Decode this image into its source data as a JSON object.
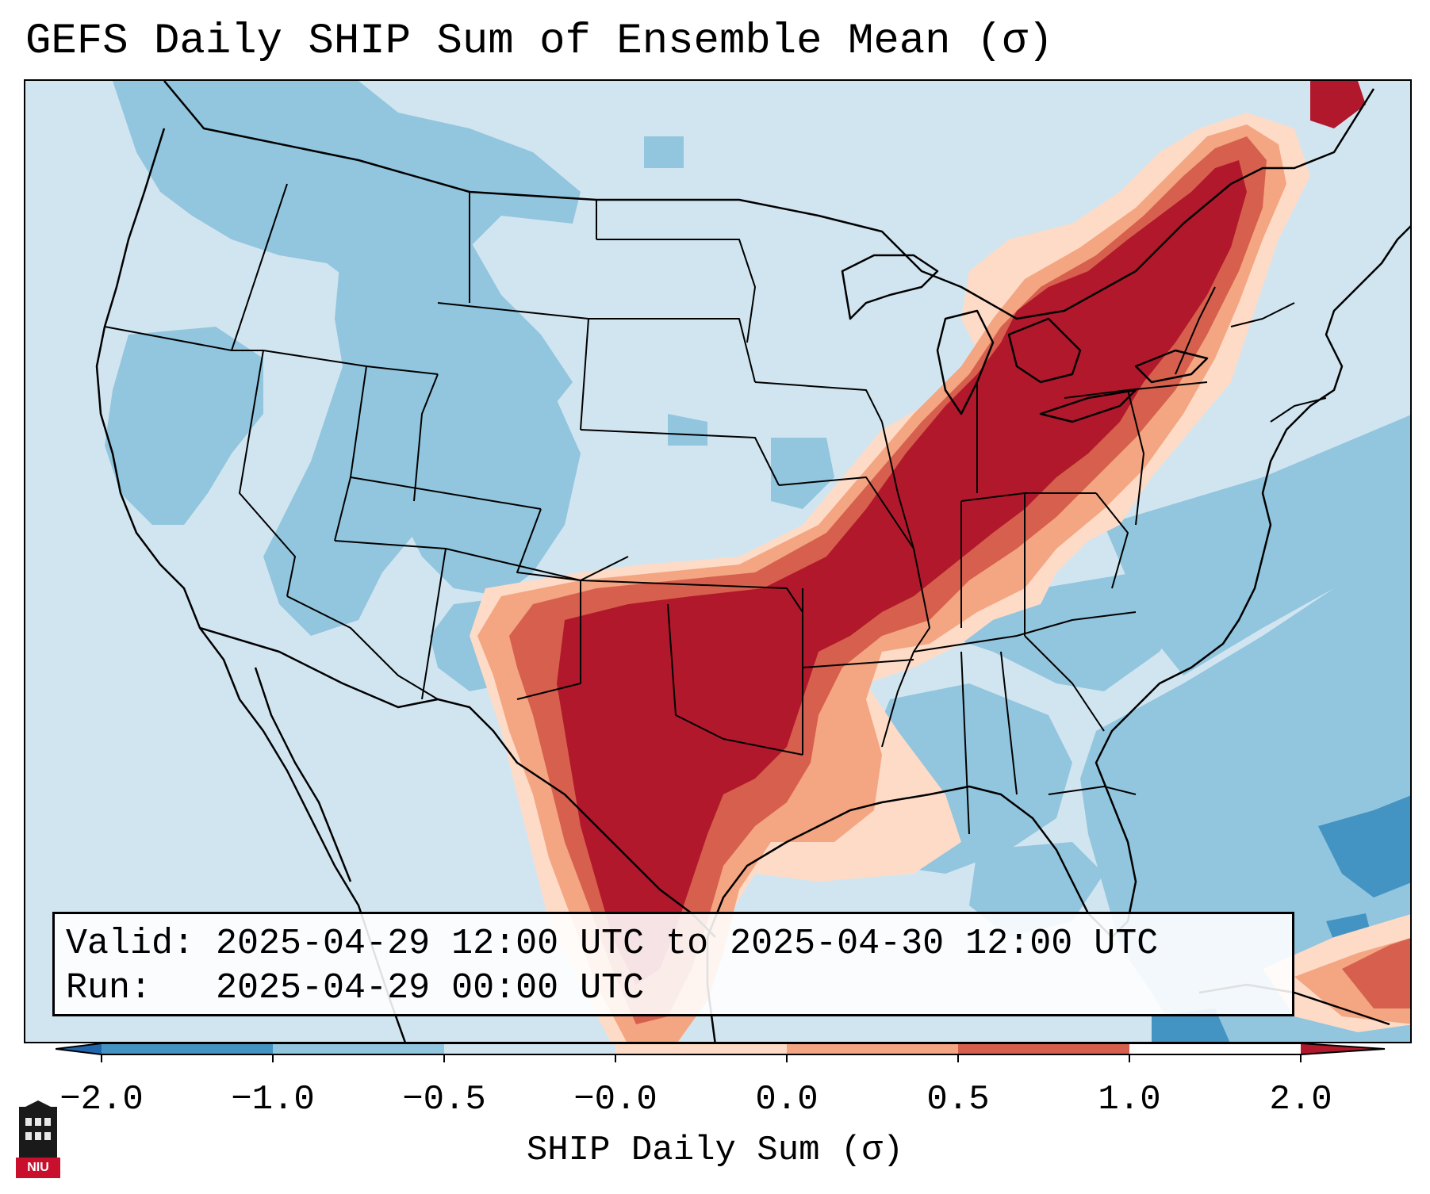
{
  "title": "GEFS Daily SHIP Sum of Ensemble Mean (σ)",
  "info": {
    "valid_line": "Valid: 2025-04-29 12:00 UTC to 2025-04-30 12:00 UTC",
    "run_line": "Run:   2025-04-29 00:00 UTC"
  },
  "colorbar": {
    "label": "SHIP Daily Sum (σ)",
    "ticks": [
      "−2.0",
      "−1.0",
      "−0.5",
      "−0.0",
      "0.0",
      "0.5",
      "1.0",
      "2.0"
    ],
    "colors": [
      "#2166ac",
      "#4393c3",
      "#92c5de",
      "#d1e5f0",
      "#fddbc7",
      "#f4a582",
      "#d6604d",
      "#b2182b"
    ],
    "extend": "both"
  },
  "logo_text": "NIU"
}
